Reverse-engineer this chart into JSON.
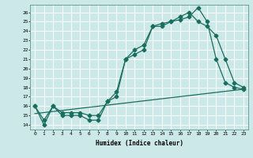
{
  "title": "",
  "xlabel": "Humidex (Indice chaleur)",
  "bg_color": "#cce8e8",
  "line_color": "#1a6e5e",
  "grid_color": "#ffffff",
  "ylim": [
    13.5,
    26.8
  ],
  "xlim": [
    -0.5,
    23.5
  ],
  "yticks": [
    14,
    15,
    16,
    17,
    18,
    19,
    20,
    21,
    22,
    23,
    24,
    25,
    26
  ],
  "xticks": [
    0,
    1,
    2,
    3,
    4,
    5,
    6,
    7,
    8,
    9,
    10,
    11,
    12,
    13,
    14,
    15,
    16,
    17,
    18,
    19,
    20,
    21,
    22,
    23
  ],
  "line1_x": [
    0,
    1,
    2,
    3,
    4,
    5,
    6,
    7,
    8,
    9,
    10,
    11,
    12,
    13,
    14,
    15,
    16,
    17,
    18,
    19,
    20,
    21,
    22,
    23
  ],
  "line1_y": [
    16,
    14,
    16,
    15,
    15,
    15,
    14.5,
    14.5,
    16.5,
    17,
    21,
    21.5,
    22,
    24.5,
    24.5,
    25,
    25.5,
    26,
    25,
    24.5,
    23.5,
    21,
    18.5,
    18
  ],
  "line2_x": [
    0,
    1,
    2,
    3,
    4,
    5,
    6,
    7,
    8,
    9,
    10,
    11,
    12,
    13,
    14,
    15,
    16,
    17,
    18,
    19,
    20,
    21,
    22,
    23
  ],
  "line2_y": [
    16,
    14.5,
    16,
    15.3,
    15.3,
    15.3,
    15,
    15,
    16.5,
    17.5,
    21,
    22,
    22.5,
    24.5,
    24.8,
    25,
    25.2,
    25.5,
    26.5,
    25,
    21,
    18.5,
    18,
    17.8
  ],
  "line3_x": [
    0,
    23
  ],
  "line3_y": [
    15.2,
    17.8
  ],
  "marker": "D",
  "markersize": 2.5,
  "linewidth": 0.9
}
